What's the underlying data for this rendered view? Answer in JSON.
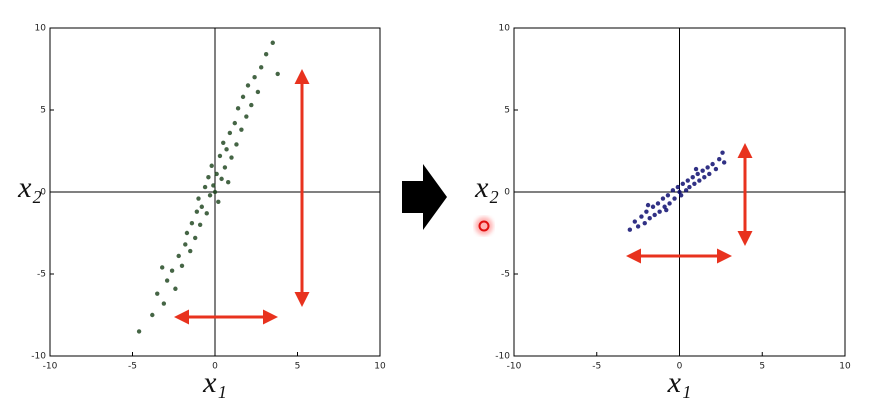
{
  "chart_data": [
    {
      "type": "scatter",
      "xlabel": "x₁",
      "ylabel": "x₂",
      "color": "#244a24",
      "xlim": [
        -10,
        10
      ],
      "ylim": [
        -10,
        10
      ],
      "xticks": [
        -10,
        -5,
        0,
        5,
        10
      ],
      "yticks": [
        -10,
        -5,
        0,
        5,
        10
      ],
      "x": [
        -4.6,
        -3.8,
        -3.5,
        -3.1,
        -2.9,
        -2.6,
        -2.4,
        -2.2,
        -2.0,
        -1.8,
        -1.7,
        -1.5,
        -1.4,
        -1.2,
        -1.1,
        -1.0,
        -0.9,
        -0.8,
        -0.6,
        -0.5,
        -0.4,
        -0.3,
        -0.2,
        -0.1,
        0,
        0.1,
        0.2,
        0.3,
        0.4,
        0.5,
        0.6,
        0.7,
        0.8,
        0.9,
        1.0,
        1.2,
        1.3,
        1.4,
        1.6,
        1.7,
        1.9,
        2.0,
        2.2,
        2.4,
        2.6,
        2.8,
        3.1,
        3.5,
        3.8,
        -3.2
      ],
      "values": [
        -8.5,
        -7.5,
        -6.2,
        -6.8,
        -5.4,
        -4.8,
        -5.9,
        -3.9,
        -4.5,
        -3.2,
        -2.5,
        -3.6,
        -1.9,
        -2.8,
        -1.2,
        -0.4,
        -2.0,
        -0.9,
        0.3,
        -1.3,
        0.9,
        -0.2,
        1.6,
        0.4,
        0,
        1.1,
        -0.6,
        2.2,
        0.8,
        3.0,
        1.5,
        2.6,
        0.6,
        3.6,
        2.1,
        4.2,
        2.9,
        5.1,
        3.8,
        5.8,
        4.6,
        6.5,
        5.3,
        7.0,
        6.1,
        7.6,
        8.4,
        9.1,
        7.2,
        -4.6
      ]
    },
    {
      "type": "scatter",
      "xlabel": "x₁",
      "ylabel": "x₂",
      "color": "#0d0d70",
      "xlim": [
        -10,
        10
      ],
      "ylim": [
        -10,
        10
      ],
      "xticks": [
        -10,
        -5,
        0,
        5,
        10
      ],
      "yticks": [
        -10,
        -5,
        0,
        5,
        10
      ],
      "x": [
        -3.0,
        -2.7,
        -2.5,
        -2.3,
        -2.1,
        -2.0,
        -1.8,
        -1.6,
        -1.5,
        -1.3,
        -1.2,
        -1.0,
        -0.9,
        -0.7,
        -0.6,
        -0.4,
        -0.3,
        -0.1,
        0,
        0.1,
        0.2,
        0.4,
        0.5,
        0.6,
        0.8,
        0.9,
        1.1,
        1.2,
        1.4,
        1.5,
        1.7,
        1.8,
        2.0,
        2.2,
        2.4,
        2.6,
        2.7,
        -1.9,
        1.0,
        -0.8
      ],
      "values": [
        -2.3,
        -1.8,
        -2.1,
        -1.5,
        -1.9,
        -1.2,
        -1.6,
        -0.9,
        -1.4,
        -0.7,
        -1.2,
        -0.4,
        -0.9,
        -0.2,
        -0.7,
        0.1,
        -0.4,
        0.3,
        0,
        -0.2,
        0.5,
        0.1,
        0.7,
        0.3,
        0.9,
        0.5,
        1.1,
        0.7,
        1.3,
        0.9,
        1.5,
        1.1,
        1.7,
        1.4,
        2.0,
        2.4,
        1.8,
        -0.8,
        1.4,
        -1.1
      ]
    }
  ]
}
